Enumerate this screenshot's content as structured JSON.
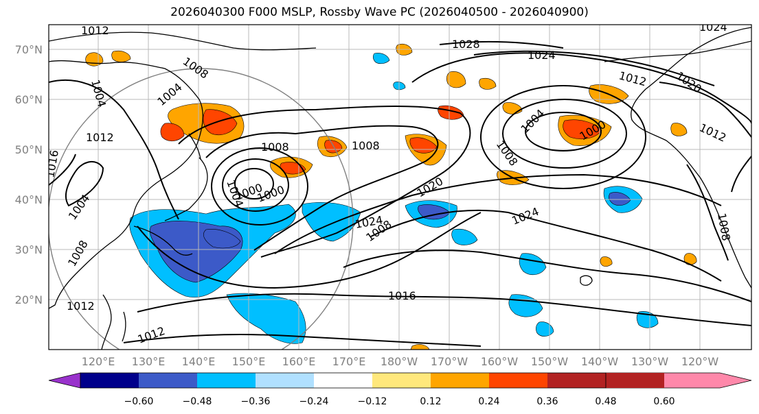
{
  "title": "2026040300 F000 MSLP, Rossby Wave PC (2026040500 - 2026040900)",
  "lat_labels": [
    "70°N",
    "60°N",
    "50°N",
    "40°N",
    "30°N",
    "20°N"
  ],
  "lon_labels": [
    "120°E",
    "130°E",
    "140°E",
    "150°E",
    "160°E",
    "170°E",
    "180°W",
    "170°W",
    "160°W",
    "150°W",
    "140°W",
    "130°W",
    "120°W"
  ],
  "isobar_labels": [
    "1012",
    "1008",
    "1004",
    "1004",
    "1012",
    "1016",
    "1008",
    "1004",
    "1000",
    "1000",
    "1008",
    "1028",
    "1024",
    "1008",
    "1004",
    "1000",
    "1008",
    "1020",
    "1024",
    "1024",
    "1016",
    "1012",
    "1020",
    "1012",
    "1012",
    "1008",
    "1004",
    "1012",
    "1008",
    "1024"
  ],
  "colorbar": {
    "ticks": [
      "−0.60",
      "−0.48",
      "−0.36",
      "−0.24",
      "−0.12",
      "0.12",
      "0.24",
      "0.36",
      "0.48",
      "0.60"
    ],
    "colors": [
      "#9932cc",
      "#00008b",
      "#3c5ac8",
      "#00bfff",
      "#b0e0ff",
      "#ffffff",
      "#ffe87c",
      "#ffa500",
      "#ff4500",
      "#b22222",
      "#ff88aa"
    ]
  }
}
